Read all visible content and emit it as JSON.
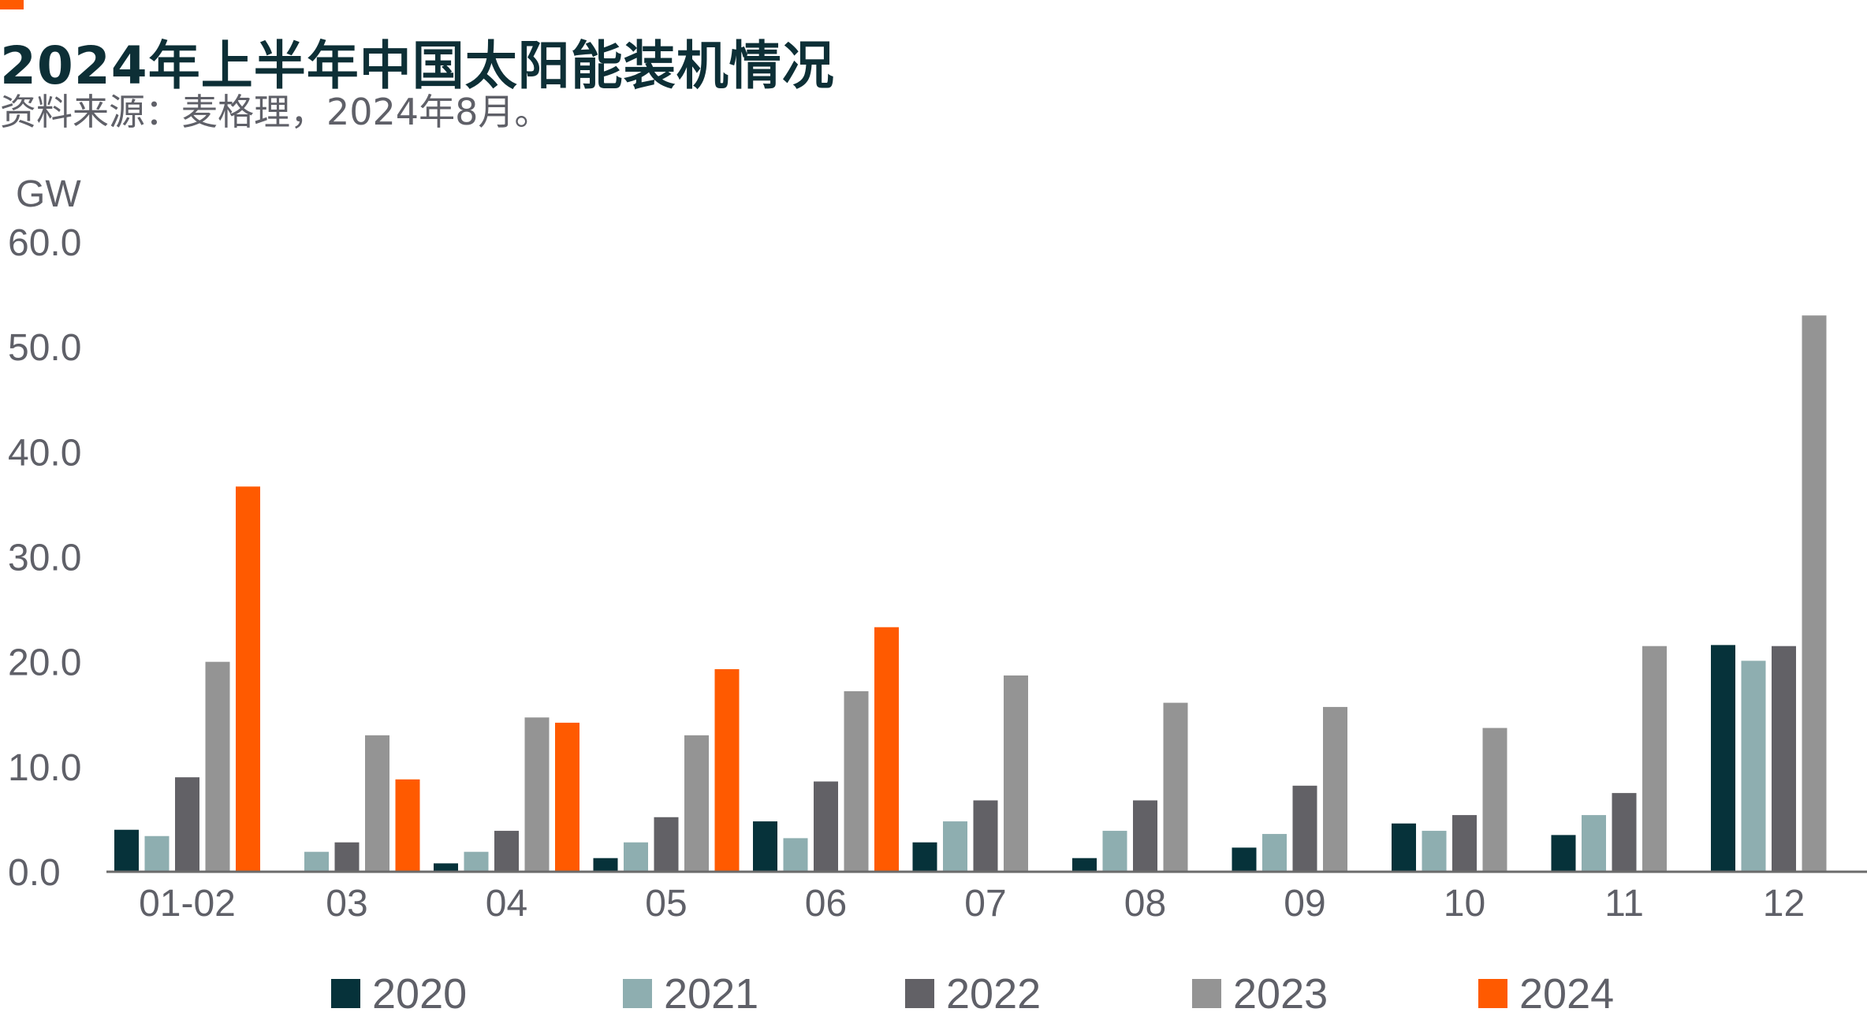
{
  "header": {
    "title": "2024年上半年中国太阳能装机情况",
    "subtitle": "资料来源：麦格理，2024年8月。"
  },
  "chart_data": {
    "type": "bar",
    "title": "2024年上半年中国太阳能装机情况",
    "subtitle": "资料来源：麦格理，2024年8月。",
    "ylabel": "GW",
    "xlabel": "",
    "ylim": [
      0,
      60
    ],
    "yticks": [
      "0.0",
      "10.0",
      "20.0",
      "30.0",
      "40.0",
      "50.0",
      "60.0"
    ],
    "categories": [
      "01-02",
      "03",
      "04",
      "05",
      "06",
      "07",
      "08",
      "09",
      "10",
      "11",
      "12"
    ],
    "series": [
      {
        "name": "2020",
        "color": "#06323a",
        "values": [
          4.0,
          0.1,
          0.8,
          1.3,
          4.8,
          2.8,
          1.3,
          2.3,
          4.6,
          3.5,
          21.6
        ]
      },
      {
        "name": "2021",
        "color": "#8eaeb0",
        "values": [
          3.4,
          1.9,
          1.9,
          2.8,
          3.2,
          4.8,
          3.9,
          3.6,
          3.9,
          5.4,
          20.1
        ]
      },
      {
        "name": "2022",
        "color": "#626166",
        "values": [
          9.0,
          2.8,
          3.9,
          5.2,
          8.6,
          6.8,
          6.8,
          8.2,
          5.4,
          7.5,
          21.5
        ]
      },
      {
        "name": "2023",
        "color": "#949494",
        "values": [
          20.0,
          13.0,
          14.7,
          13.0,
          17.2,
          18.7,
          16.1,
          15.7,
          13.7,
          21.5,
          53.0
        ]
      },
      {
        "name": "2024",
        "color": "#ff5a00",
        "values": [
          36.7,
          8.8,
          14.2,
          19.3,
          23.3,
          null,
          null,
          null,
          null,
          null,
          null
        ]
      }
    ],
    "legend_position": "bottom",
    "grid": false
  }
}
